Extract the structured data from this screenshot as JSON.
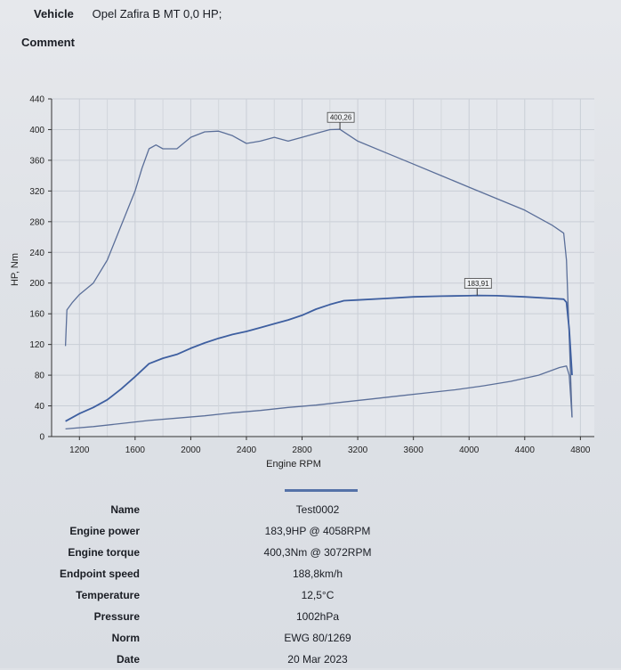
{
  "header": {
    "vehicle_label": "Vehicle",
    "vehicle_value": "Opel Zafira B MT 0,0 HP;",
    "comment_label": "Comment"
  },
  "chart_data": {
    "type": "line",
    "xlabel": "Engine RPM",
    "ylabel": "HP, Nm",
    "xlim": [
      1000,
      4900
    ],
    "ylim": [
      0,
      440
    ],
    "x_ticks": [
      1200,
      1600,
      2000,
      2400,
      2800,
      3200,
      3600,
      4000,
      4400,
      4800
    ],
    "y_ticks": [
      0,
      40,
      80,
      120,
      160,
      200,
      240,
      280,
      320,
      360,
      400,
      440
    ],
    "grid": true,
    "series": [
      {
        "color": "#5b6f99",
        "x": [
          1100,
          1110,
          1150,
          1200,
          1300,
          1400,
          1500,
          1600,
          1650,
          1700,
          1750,
          1800,
          1900,
          2000,
          2100,
          2200,
          2300,
          2400,
          2500,
          2600,
          2700,
          2800,
          2900,
          3000,
          3072,
          3200,
          3400,
          3600,
          3800,
          4000,
          4200,
          4400,
          4600,
          4680,
          4700,
          4720,
          4740
        ],
        "y": [
          118,
          165,
          175,
          185,
          200,
          230,
          275,
          320,
          350,
          375,
          380,
          375,
          375,
          390,
          397,
          398,
          392,
          382,
          385,
          390,
          385,
          390,
          395,
          400,
          400.26,
          385,
          370,
          355,
          340,
          325,
          310,
          295,
          275,
          265,
          230,
          130,
          25
        ]
      },
      {
        "color": "#3e5fa0",
        "x": [
          1100,
          1200,
          1300,
          1400,
          1500,
          1600,
          1700,
          1800,
          1900,
          2000,
          2100,
          2200,
          2300,
          2400,
          2500,
          2600,
          2700,
          2800,
          2900,
          3000,
          3100,
          3200,
          3400,
          3600,
          3800,
          4000,
          4058,
          4200,
          4400,
          4600,
          4680,
          4700,
          4720,
          4740
        ],
        "y": [
          20,
          30,
          38,
          48,
          62,
          78,
          95,
          102,
          107,
          115,
          122,
          128,
          133,
          137,
          142,
          147,
          152,
          158,
          166,
          172,
          177,
          178,
          180,
          182,
          183,
          183.5,
          183.91,
          183.5,
          182,
          180,
          179,
          175,
          140,
          80
        ]
      },
      {
        "color": "#5b6f99",
        "x": [
          1100,
          1300,
          1500,
          1700,
          1900,
          2100,
          2300,
          2500,
          2700,
          2900,
          3100,
          3300,
          3500,
          3700,
          3900,
          4100,
          4300,
          4500,
          4650,
          4700,
          4720,
          4740
        ],
        "y": [
          10,
          13,
          17,
          21,
          24,
          27,
          31,
          34,
          38,
          41,
          45,
          49,
          53,
          57,
          61,
          66,
          72,
          80,
          90,
          92,
          80,
          25
        ]
      }
    ],
    "annotations": [
      {
        "text": "400,26",
        "x": 3072,
        "y": 400.26
      },
      {
        "text": "183,91",
        "x": 4058,
        "y": 183.91
      }
    ]
  },
  "info": [
    {
      "label": "Name",
      "value": "Test0002"
    },
    {
      "label": "Engine power",
      "value": "183,9HP @ 4058RPM"
    },
    {
      "label": "Engine torque",
      "value": "400,3Nm @ 3072RPM"
    },
    {
      "label": "Endpoint speed",
      "value": "188,8km/h"
    },
    {
      "label": "Temperature",
      "value": "12,5°C"
    },
    {
      "label": "Pressure",
      "value": "1002hPa"
    },
    {
      "label": "Norm",
      "value": "EWG 80/1269"
    },
    {
      "label": "Date",
      "value": "20 Mar 2023"
    }
  ]
}
